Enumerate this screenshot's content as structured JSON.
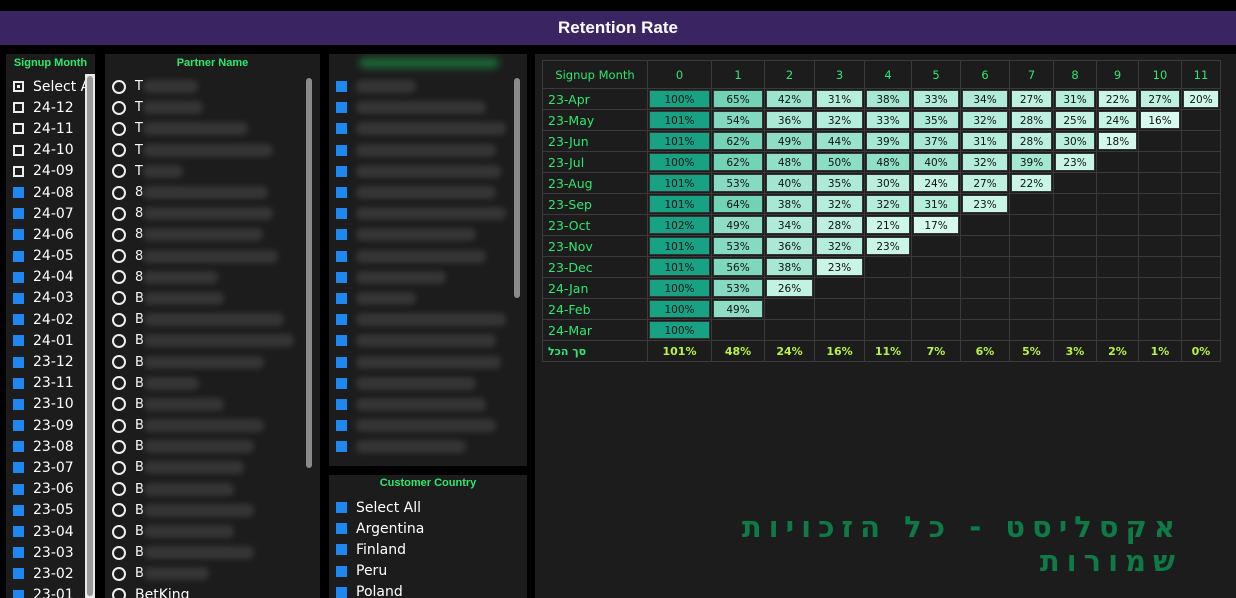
{
  "header": {
    "title": "Retention Rate"
  },
  "signup_slicer": {
    "title": "Signup Month",
    "items": [
      {
        "label": "Select All",
        "state": "partial"
      },
      {
        "label": "24-12",
        "state": "empty"
      },
      {
        "label": "24-11",
        "state": "empty"
      },
      {
        "label": "24-10",
        "state": "empty"
      },
      {
        "label": "24-09",
        "state": "empty"
      },
      {
        "label": "24-08",
        "state": "checked"
      },
      {
        "label": "24-07",
        "state": "checked"
      },
      {
        "label": "24-06",
        "state": "checked"
      },
      {
        "label": "24-05",
        "state": "checked"
      },
      {
        "label": "24-04",
        "state": "checked"
      },
      {
        "label": "24-03",
        "state": "checked"
      },
      {
        "label": "24-02",
        "state": "checked"
      },
      {
        "label": "24-01",
        "state": "checked"
      },
      {
        "label": "23-12",
        "state": "checked"
      },
      {
        "label": "23-11",
        "state": "checked"
      },
      {
        "label": "23-10",
        "state": "checked"
      },
      {
        "label": "23-09",
        "state": "checked"
      },
      {
        "label": "23-08",
        "state": "checked"
      },
      {
        "label": "23-07",
        "state": "checked"
      },
      {
        "label": "23-06",
        "state": "checked"
      },
      {
        "label": "23-05",
        "state": "checked"
      },
      {
        "label": "23-04",
        "state": "checked"
      },
      {
        "label": "23-03",
        "state": "checked"
      },
      {
        "label": "23-02",
        "state": "checked"
      },
      {
        "label": "23-01",
        "state": "checked"
      }
    ]
  },
  "partner_slicer": {
    "title": "Partner Name",
    "visible_prefixes": [
      "T",
      "T",
      "T",
      "T",
      "T",
      "8",
      "8",
      "8",
      "8",
      "8",
      "B",
      "B",
      "B",
      "B",
      "B",
      "B",
      "B",
      "B",
      "B",
      "B",
      "B",
      "B",
      "B",
      "B"
    ],
    "last_item": "BetKing"
  },
  "blurred_slicer": {
    "row_count": 18
  },
  "country_slicer": {
    "title": "Customer Country",
    "items": [
      {
        "label": "Select All"
      },
      {
        "label": "Argentina"
      },
      {
        "label": "Finland"
      },
      {
        "label": "Peru"
      },
      {
        "label": "Poland"
      }
    ]
  },
  "matrix": {
    "corner_label": "Signup Month",
    "columns": [
      "0",
      "1",
      "2",
      "3",
      "4",
      "5",
      "6",
      "7",
      "8",
      "9",
      "10",
      "11"
    ],
    "rows": [
      {
        "label": "23-Apr",
        "values": [
          "100%",
          "65%",
          "42%",
          "31%",
          "38%",
          "33%",
          "34%",
          "27%",
          "31%",
          "22%",
          "27%",
          "20%"
        ]
      },
      {
        "label": "23-May",
        "values": [
          "101%",
          "54%",
          "36%",
          "32%",
          "33%",
          "35%",
          "32%",
          "28%",
          "25%",
          "24%",
          "16%"
        ]
      },
      {
        "label": "23-Jun",
        "values": [
          "101%",
          "62%",
          "49%",
          "44%",
          "39%",
          "37%",
          "31%",
          "28%",
          "30%",
          "18%"
        ]
      },
      {
        "label": "23-Jul",
        "values": [
          "100%",
          "62%",
          "48%",
          "50%",
          "48%",
          "40%",
          "32%",
          "39%",
          "23%"
        ]
      },
      {
        "label": "23-Aug",
        "values": [
          "101%",
          "53%",
          "40%",
          "35%",
          "30%",
          "24%",
          "27%",
          "22%"
        ]
      },
      {
        "label": "23-Sep",
        "values": [
          "101%",
          "64%",
          "38%",
          "32%",
          "32%",
          "31%",
          "23%"
        ]
      },
      {
        "label": "23-Oct",
        "values": [
          "102%",
          "49%",
          "34%",
          "28%",
          "21%",
          "17%"
        ]
      },
      {
        "label": "23-Nov",
        "values": [
          "101%",
          "53%",
          "36%",
          "32%",
          "23%"
        ]
      },
      {
        "label": "23-Dec",
        "values": [
          "101%",
          "56%",
          "38%",
          "23%"
        ]
      },
      {
        "label": "24-Jan",
        "values": [
          "100%",
          "53%",
          "26%"
        ]
      },
      {
        "label": "24-Feb",
        "values": [
          "100%",
          "49%"
        ]
      },
      {
        "label": "24-Mar",
        "values": [
          "100%"
        ]
      }
    ],
    "total": {
      "label": "סך הכל",
      "values": [
        "101%",
        "48%",
        "24%",
        "16%",
        "11%",
        "7%",
        "6%",
        "5%",
        "3%",
        "2%",
        "1%",
        "0%"
      ]
    },
    "colors": {
      "high": "#17a383",
      "mid": "#75d4b8",
      "low": "#dafcf0"
    }
  },
  "watermark": "אקסליסט - כל הזכויות שמורות"
}
